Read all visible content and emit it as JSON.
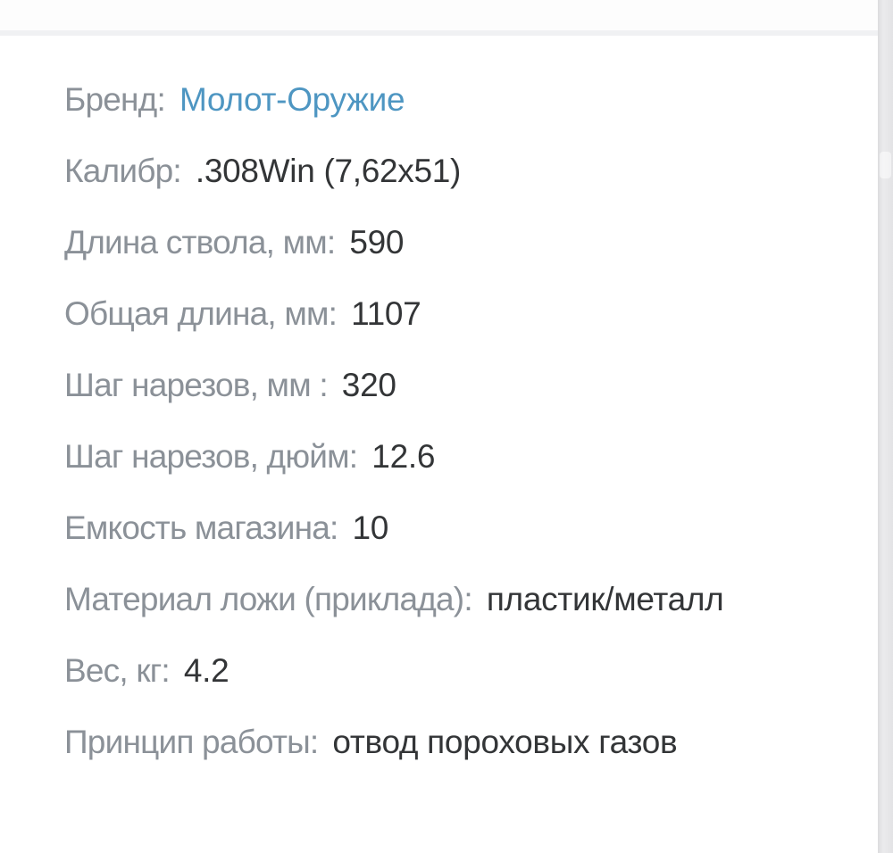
{
  "page": {
    "background": "#ffffff",
    "top_band_color": "#fdfdfd",
    "top_divider_color": "#f0f1f3",
    "right_strip_color": "#e3e3e5"
  },
  "colors": {
    "label": "#8b9198",
    "value": "#333537",
    "link": "#4e96c2"
  },
  "specs": {
    "rows": [
      {
        "label": "Бренд:",
        "value": "Молот-Оружие",
        "is_link": true
      },
      {
        "label": "Калибр:",
        "value": ".308Win (7,62x51)",
        "is_link": false
      },
      {
        "label": "Длина ствола, мм:",
        "value": "590",
        "is_link": false
      },
      {
        "label": "Общая длина, мм:",
        "value": "1107",
        "is_link": false
      },
      {
        "label": "Шаг нарезов, мм :",
        "value": "320",
        "is_link": false
      },
      {
        "label": "Шаг нарезов, дюйм:",
        "value": "12.6",
        "is_link": false
      },
      {
        "label": "Емкость магазина:",
        "value": "10",
        "is_link": false
      },
      {
        "label": "Материал ложи (приклада):",
        "value": "пластик/металл",
        "is_link": false
      },
      {
        "label": "Вес, кг:",
        "value": "4.2",
        "is_link": false
      },
      {
        "label": "Принцип работы:",
        "value": "отвод пороховых газов",
        "is_link": false
      }
    ]
  }
}
